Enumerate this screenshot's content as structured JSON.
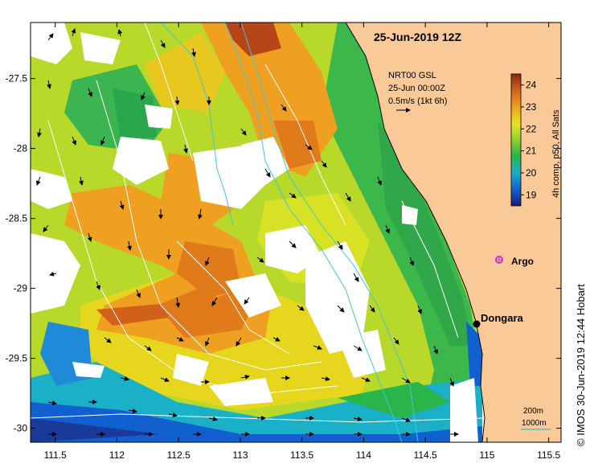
{
  "title": "25-Jun-2019 12Z",
  "current_info": {
    "line1": "NRT00 GSL",
    "line2": "25-Jun 00:00Z",
    "line3": "0.5m/s (1kt 6h)"
  },
  "colorbar": {
    "label": "4h comp, p50, All Sats",
    "ticks": [
      "19",
      "20",
      "21",
      "22",
      "23",
      "24"
    ],
    "range": [
      18.5,
      24.5
    ],
    "colors": [
      "#1a1a7a",
      "#1060d0",
      "#19b0c8",
      "#2ab54a",
      "#8fd12c",
      "#e6e61e",
      "#f0a020",
      "#d0601a",
      "#8a2a10"
    ]
  },
  "map": {
    "lon_ticks": [
      "111.5",
      "112",
      "112.5",
      "113",
      "113.5",
      "114",
      "114.5",
      "115",
      "115.5"
    ],
    "lat_ticks": [
      "-27.5",
      "-28",
      "-28.5",
      "-29",
      "-29.5",
      "-30"
    ],
    "lon_range": [
      111.3,
      115.6
    ],
    "lat_range": [
      -30.1,
      -27.1
    ],
    "land_color": "#f9c998",
    "ocean_color": "#ffffff",
    "markers": {
      "argo": {
        "label": "Argo",
        "lon": 115.11,
        "lat": -28.82,
        "color": "#cc33cc"
      },
      "dongara": {
        "label": "Dongara",
        "lon": 114.93,
        "lat": -29.25
      }
    }
  },
  "scale": {
    "contour_200": "200m",
    "contour_1000": "1000m",
    "contour_color": "#40c8d0"
  },
  "credit": "© IMOS 30-Jun-2019 12:44 Hobart"
}
